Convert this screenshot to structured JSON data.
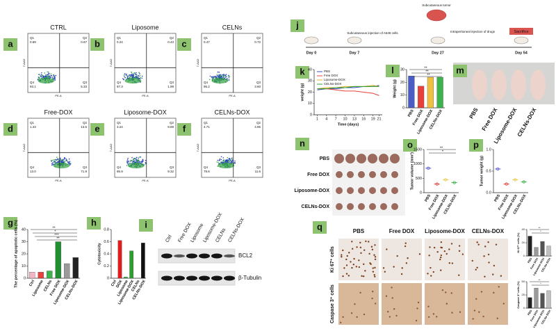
{
  "flow": {
    "y_axis": "7-AAD",
    "x_axis": "PE-A",
    "panels": [
      {
        "label": "a",
        "title": "CTRL",
        "quadrants": [
          {
            "name": "Q1",
            "value": "0.69"
          },
          {
            "name": "Q2",
            "value": "0.67"
          },
          {
            "name": "Q4",
            "value": "93.1"
          },
          {
            "name": "Q3",
            "value": "5.33"
          }
        ]
      },
      {
        "label": "b",
        "title": "Liposome",
        "quadrants": [
          {
            "name": "Q1",
            "value": "0.24"
          },
          {
            "name": "Q2",
            "value": "0.43"
          },
          {
            "name": "Q4",
            "value": "97.3"
          },
          {
            "name": "Q3",
            "value": "1.99"
          }
        ]
      },
      {
        "label": "c",
        "title": "CELNs",
        "quadrants": [
          {
            "name": "Q1",
            "value": "0.47"
          },
          {
            "name": "Q2",
            "value": "0.72"
          },
          {
            "name": "Q4",
            "value": "95.2"
          },
          {
            "name": "Q3",
            "value": "3.60"
          }
        ]
      },
      {
        "label": "d",
        "title": "Free-DOX",
        "quadrants": [
          {
            "name": "Q1",
            "value": "1.43"
          },
          {
            "name": "Q2",
            "value": "13.6"
          },
          {
            "name": "Q4",
            "value": "13.0"
          },
          {
            "name": "Q3",
            "value": "71.9"
          }
        ]
      },
      {
        "label": "e",
        "title": "Liposome-DOX",
        "quadrants": [
          {
            "name": "Q1",
            "value": "3.24"
          },
          {
            "name": "Q2",
            "value": "9.89"
          },
          {
            "name": "Q4",
            "value": "86.9"
          },
          {
            "name": "Q3",
            "value": "9.32"
          }
        ]
      },
      {
        "label": "f",
        "title": "CELNs-DOX",
        "quadrants": [
          {
            "name": "Q1",
            "value": "4.71"
          },
          {
            "name": "Q2",
            "value": "4.95"
          },
          {
            "name": "Q4",
            "value": "78.6"
          },
          {
            "name": "Q3",
            "value": "11.6"
          }
        ]
      }
    ]
  },
  "blot": {
    "label": "i",
    "lanes": [
      "Ctrl",
      "Free DOX",
      "Liposome",
      "Liposome-DOX",
      "CELNs",
      "CELNs-DOX"
    ],
    "rows": [
      "BCL2",
      "β-Tubulin"
    ]
  },
  "schedule": {
    "label": "j",
    "days": [
      "Day 0",
      "Day 7",
      "Day 27",
      "Day 54"
    ],
    "notes": [
      "Subcutaneous injection of A549 cells",
      "Subcutaneous tumor",
      "Intraperitoneal injection of drugs"
    ],
    "end": "Sacrifice"
  },
  "mice": {
    "label": "m",
    "groups": [
      "PBS",
      "Free DOX",
      "Liposome-DOX",
      "CELNs-DOX"
    ]
  },
  "tumors": {
    "label": "n",
    "groups": [
      "PBS",
      "Free DOX",
      "Liposome-DOX",
      "CELNs-DOX"
    ]
  },
  "ihc": {
    "label": "q",
    "columns": [
      "PBS",
      "Free DOX",
      "Liposome-DOX",
      "CELNs-DOX"
    ],
    "rows": [
      "Ki 67⁺ cells",
      "Caspase 3⁺ cells"
    ]
  },
  "chart_data": [
    {
      "panel": "g",
      "type": "bar",
      "y_label": "The percentage of apoptotic cells (%)",
      "categories": [
        "Ctrl",
        "Liposome",
        "CELNs",
        "Free DOX",
        "Liposome-DOX",
        "CELNs-DOX"
      ],
      "values": [
        5,
        5,
        6,
        30,
        12,
        17
      ],
      "colors": [
        "#f4b6c2",
        "#e8413c",
        "#3cb44b",
        "#1f8f2f",
        "#9a9a9a",
        "#222222"
      ],
      "ylim": [
        0,
        40
      ],
      "yticks": [
        0,
        10,
        20,
        30,
        40
      ],
      "annotations": [
        "**",
        "*",
        "***",
        "**"
      ]
    },
    {
      "panel": "h",
      "type": "bar",
      "y_label": "Cytotoxicity",
      "categories": [
        "Ctrl",
        "DOX",
        "Liposome",
        "Liposome-DOX",
        "CELNs",
        "CELNs-DOX"
      ],
      "values": [
        0,
        0.62,
        0.02,
        0.45,
        0,
        0.58
      ],
      "colors": [
        "#f4b6c2",
        "#e41a1c",
        "#3cb44b",
        "#2ca02c",
        "#9a9a9a",
        "#111111"
      ],
      "ylim": [
        0,
        0.8
      ],
      "yticks": [
        0,
        0.2,
        0.4,
        0.6,
        0.8
      ]
    },
    {
      "panel": "k",
      "type": "line",
      "y_label": "weight (g)",
      "x_label": "Time (days)",
      "x": [
        1,
        4,
        7,
        10,
        13,
        16,
        19,
        21
      ],
      "xlim": [
        0,
        22
      ],
      "xticks": [
        1,
        4,
        7,
        10,
        13,
        16,
        19,
        21
      ],
      "ylim": [
        0,
        40
      ],
      "yticks": [
        0,
        10,
        20,
        30,
        40
      ],
      "series": [
        {
          "name": "PBS",
          "color": "#3b4cc0",
          "values": [
            22,
            23,
            23,
            24,
            24,
            25,
            25,
            26
          ]
        },
        {
          "name": "Free DOX",
          "color": "#e8413c",
          "values": [
            23,
            23,
            22,
            21,
            21,
            20,
            19,
            17
          ]
        },
        {
          "name": "Liposome-DOX",
          "color": "#e0b030",
          "values": [
            23,
            24,
            24,
            25,
            25,
            25,
            26,
            25
          ]
        },
        {
          "name": "CELNs-DOX",
          "color": "#2ca02c",
          "values": [
            23,
            23,
            24,
            24,
            25,
            25,
            25,
            25
          ]
        }
      ]
    },
    {
      "panel": "l",
      "type": "bar",
      "y_label": "Weight (g)",
      "categories": [
        "PBS",
        "Free DOX",
        "Liposome-DOX",
        "CELNs-DOX"
      ],
      "values": [
        25,
        17,
        24,
        24
      ],
      "colors": [
        "#4b5cc4",
        "#e8413c",
        "#f0c040",
        "#3cb44b"
      ],
      "ylim": [
        0,
        30
      ],
      "yticks": [
        0,
        10,
        20,
        30
      ],
      "annotations": [
        "**",
        "**",
        "**"
      ]
    },
    {
      "panel": "o",
      "type": "dot",
      "y_label": "Tumor volume (mm³)",
      "categories": [
        "PBS",
        "Free DOX",
        "Liposome-DOX",
        "CELNs-DOX"
      ],
      "values": [
        850,
        300,
        450,
        350
      ],
      "colors": [
        "#5a5ad0",
        "#e8413c",
        "#e8c840",
        "#3cb44b"
      ],
      "ylim": [
        0,
        1500
      ],
      "yticks": [
        0,
        500,
        1000,
        1500
      ],
      "annotations": [
        "**",
        "*"
      ]
    },
    {
      "panel": "p",
      "type": "dot",
      "y_label": "Tumor weight (g)",
      "categories": [
        "PBS",
        "Free DOX",
        "Liposome-DOX",
        "CELNs-DOX"
      ],
      "values": [
        0.55,
        0.2,
        0.3,
        0.25
      ],
      "colors": [
        "#5a5ad0",
        "#e8413c",
        "#e8c840",
        "#3cb44b"
      ],
      "ylim": [
        0,
        1
      ],
      "yticks": [
        {
          "value": 0,
          "label": "0.0"
        },
        {
          "value": 0.5,
          "label": "0.5"
        },
        {
          "value": 1,
          "label": "1.0"
        }
      ]
    },
    {
      "type": "bar",
      "y_label": "Ki 67⁺ cells (%)",
      "categories": [
        "PBS",
        "Free DOX",
        "Liposome-DOX",
        "CELNs-DOX"
      ],
      "values": [
        30,
        13,
        22,
        15
      ],
      "colors": [
        "#222222",
        "#9a9a9a",
        "#555555",
        "#c0c0c0"
      ],
      "ylim": [
        0,
        40
      ],
      "yticks": [
        0,
        20,
        40
      ],
      "annotations": [
        "**",
        "*"
      ]
    },
    {
      "type": "bar",
      "y_label": "Caspase 3⁺ cells (%)",
      "categories": [
        "PBS",
        "Free DOX",
        "Liposome-DOX",
        "CELNs-DOX"
      ],
      "values": [
        20,
        38,
        28,
        33
      ],
      "colors": [
        "#222222",
        "#9a9a9a",
        "#555555",
        "#c0c0c0"
      ],
      "ylim": [
        0,
        50
      ],
      "yticks": [
        0,
        25,
        50
      ],
      "annotations": [
        "**",
        "*"
      ]
    }
  ]
}
